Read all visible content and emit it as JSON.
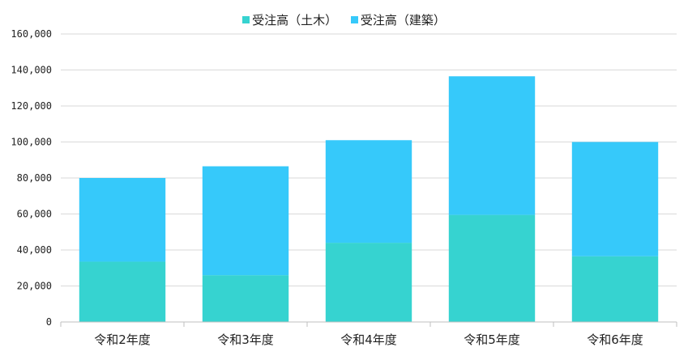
{
  "chart_data": {
    "type": "bar",
    "stacked": true,
    "categories": [
      "令和2年度",
      "令和3年度",
      "令和4年度",
      "令和5年度",
      "令和6年度"
    ],
    "series": [
      {
        "name": "受注高（土木）",
        "values": [
          33500,
          26000,
          44000,
          59500,
          36500
        ]
      },
      {
        "name": "受注高（建築）",
        "values": [
          46500,
          60500,
          57000,
          77000,
          63500
        ]
      }
    ],
    "ylim": [
      0,
      160000
    ],
    "yticks": [
      "0",
      "20,000",
      "40,000",
      "60,000",
      "80,000",
      "100,000",
      "120,000",
      "140,000",
      "160,000"
    ],
    "colors": {
      "series0": "#36d3d0",
      "series1": "#36c9fa",
      "grid": "#d9d9d9",
      "axis": "#bfbfbf"
    },
    "legend": "top",
    "grid": true
  }
}
